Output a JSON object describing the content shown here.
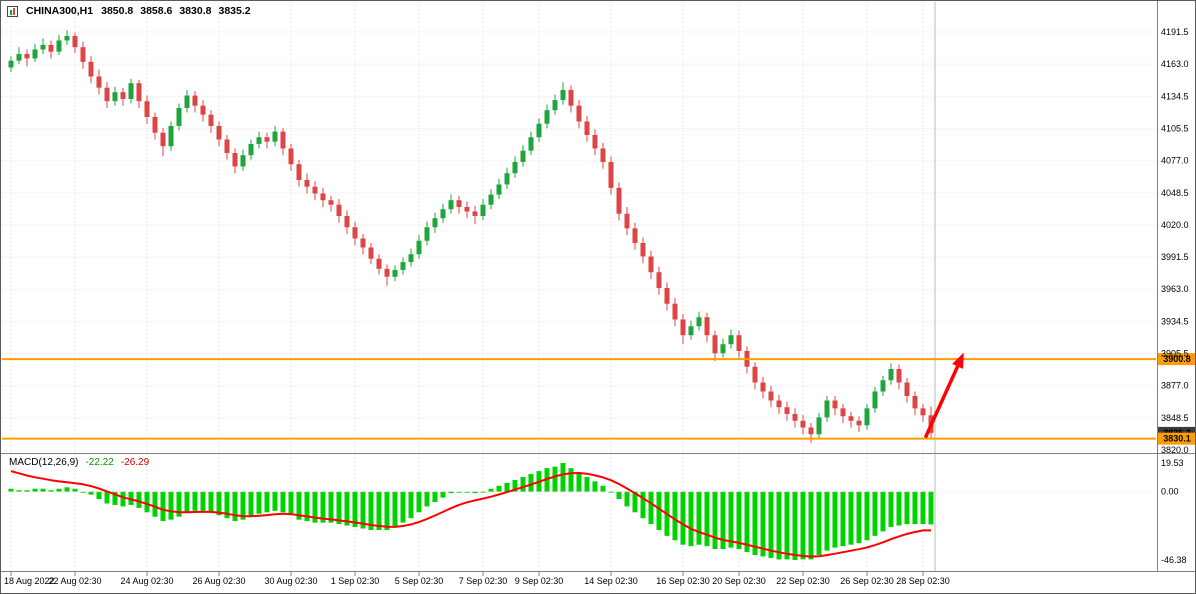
{
  "title": {
    "symbol_period": "CHINA300,H1",
    "open": "3850.8",
    "high": "3858.6",
    "low": "3830.8",
    "close": "3835.2"
  },
  "colors": {
    "bull": "#1fa53c",
    "bear": "#dd4545",
    "macd_hist": "#00d200",
    "macd_signal": "#ff0000",
    "level": "#ff9d00",
    "arrow": "#ff0000",
    "grid": "#d9d9d9",
    "separator": "#808080",
    "last_bar_line": "#bbbbbb",
    "tag_dark_bg": "#3c3c3c",
    "axis_text": "#000000"
  },
  "chart_data": {
    "type": "candlestick",
    "symbol": "CHINA300",
    "timeframe": "H1",
    "ylim": [
      3820.0,
      4191.5
    ],
    "price_ticks": [
      "4191.5",
      "4163.0",
      "4134.5",
      "4105.5",
      "4077.0",
      "4048.5",
      "4020.0",
      "3991.5",
      "3963.0",
      "3934.5",
      "3905.5",
      "3877.0",
      "3848.5",
      "3820.0"
    ],
    "time_ticks": [
      {
        "label": "18 Aug 2022",
        "i": 0
      },
      {
        "label": "22 Aug 02:30",
        "i": 8
      },
      {
        "label": "24 Aug 02:30",
        "i": 17
      },
      {
        "label": "26 Aug 02:30",
        "i": 26
      },
      {
        "label": "30 Aug 02:30",
        "i": 35
      },
      {
        "label": "1 Sep 02:30",
        "i": 43
      },
      {
        "label": "5 Sep 02:30",
        "i": 51
      },
      {
        "label": "7 Sep 02:30",
        "i": 59
      },
      {
        "label": "9 Sep 02:30",
        "i": 66
      },
      {
        "label": "14 Sep 02:30",
        "i": 75
      },
      {
        "label": "16 Sep 02:30",
        "i": 84
      },
      {
        "label": "20 Sep 02:30",
        "i": 91
      },
      {
        "label": "22 Sep 02:30",
        "i": 99
      },
      {
        "label": "26 Sep 02:30",
        "i": 107
      },
      {
        "label": "28 Sep 02:30",
        "i": 114
      }
    ],
    "candles": [
      [
        4160,
        4170,
        4156,
        4166
      ],
      [
        4166,
        4178,
        4163,
        4172
      ],
      [
        4172,
        4176,
        4161,
        4168
      ],
      [
        4168,
        4181,
        4165,
        4176
      ],
      [
        4176,
        4186,
        4172,
        4180
      ],
      [
        4180,
        4184,
        4168,
        4174
      ],
      [
        4174,
        4189,
        4171,
        4184
      ],
      [
        4184,
        4193,
        4180,
        4188
      ],
      [
        4188,
        4191,
        4173,
        4178
      ],
      [
        4178,
        4183,
        4159,
        4165
      ],
      [
        4165,
        4170,
        4146,
        4152
      ],
      [
        4152,
        4158,
        4136,
        4142
      ],
      [
        4142,
        4147,
        4124,
        4130
      ],
      [
        4130,
        4143,
        4126,
        4138
      ],
      [
        4138,
        4142,
        4126,
        4132
      ],
      [
        4132,
        4150,
        4128,
        4146
      ],
      [
        4146,
        4149,
        4124,
        4130
      ],
      [
        4130,
        4135,
        4110,
        4116
      ],
      [
        4116,
        4120,
        4096,
        4102
      ],
      [
        4102,
        4106,
        4081,
        4090
      ],
      [
        4090,
        4112,
        4086,
        4108
      ],
      [
        4108,
        4128,
        4104,
        4124
      ],
      [
        4124,
        4140,
        4120,
        4135
      ],
      [
        4135,
        4139,
        4120,
        4126
      ],
      [
        4126,
        4131,
        4112,
        4118
      ],
      [
        4118,
        4122,
        4102,
        4108
      ],
      [
        4108,
        4112,
        4090,
        4096
      ],
      [
        4096,
        4100,
        4078,
        4084
      ],
      [
        4084,
        4088,
        4066,
        4072
      ],
      [
        4072,
        4087,
        4068,
        4082
      ],
      [
        4082,
        4096,
        4078,
        4092
      ],
      [
        4092,
        4103,
        4088,
        4098
      ],
      [
        4098,
        4102,
        4088,
        4094
      ],
      [
        4094,
        4108,
        4090,
        4103
      ],
      [
        4103,
        4106,
        4082,
        4088
      ],
      [
        4088,
        4092,
        4068,
        4074
      ],
      [
        4074,
        4078,
        4054,
        4060
      ],
      [
        4060,
        4066,
        4048,
        4054
      ],
      [
        4054,
        4059,
        4042,
        4048
      ],
      [
        4048,
        4053,
        4036,
        4042
      ],
      [
        4042,
        4046,
        4032,
        4038
      ],
      [
        4038,
        4043,
        4022,
        4028
      ],
      [
        4028,
        4033,
        4012,
        4018
      ],
      [
        4018,
        4023,
        4002,
        4008
      ],
      [
        4008,
        4012,
        3994,
        4000
      ],
      [
        4000,
        4004,
        3985,
        3990
      ],
      [
        3990,
        3994,
        3976,
        3981
      ],
      [
        3981,
        3985,
        3966,
        3974
      ],
      [
        3974,
        3984,
        3970,
        3980
      ],
      [
        3980,
        3991,
        3976,
        3987
      ],
      [
        3987,
        3999,
        3983,
        3994
      ],
      [
        3994,
        4011,
        3990,
        4006
      ],
      [
        4006,
        4023,
        4002,
        4018
      ],
      [
        4018,
        4031,
        4013,
        4026
      ],
      [
        4026,
        4039,
        4022,
        4034
      ],
      [
        4034,
        4047,
        4030,
        4042
      ],
      [
        4042,
        4046,
        4030,
        4036
      ],
      [
        4036,
        4041,
        4026,
        4032
      ],
      [
        4032,
        4037,
        4021,
        4028
      ],
      [
        4028,
        4043,
        4024,
        4038
      ],
      [
        4038,
        4052,
        4034,
        4047
      ],
      [
        4047,
        4061,
        4043,
        4056
      ],
      [
        4056,
        4071,
        4052,
        4066
      ],
      [
        4066,
        4081,
        4062,
        4076
      ],
      [
        4076,
        4091,
        4072,
        4086
      ],
      [
        4086,
        4103,
        4082,
        4098
      ],
      [
        4098,
        4115,
        4094,
        4110
      ],
      [
        4110,
        4127,
        4106,
        4122
      ],
      [
        4122,
        4136,
        4118,
        4131
      ],
      [
        4131,
        4147,
        4127,
        4140
      ],
      [
        4140,
        4144,
        4120,
        4126
      ],
      [
        4126,
        4131,
        4106,
        4112
      ],
      [
        4112,
        4117,
        4094,
        4100
      ],
      [
        4100,
        4105,
        4082,
        4088
      ],
      [
        4088,
        4093,
        4070,
        4076
      ],
      [
        4076,
        4081,
        4047,
        4053
      ],
      [
        4053,
        4058,
        4024,
        4030
      ],
      [
        4030,
        4036,
        4011,
        4017
      ],
      [
        4017,
        4022,
        3998,
        4004
      ],
      [
        4004,
        4009,
        3986,
        3992
      ],
      [
        3992,
        3997,
        3972,
        3978
      ],
      [
        3978,
        3983,
        3958,
        3964
      ],
      [
        3964,
        3969,
        3944,
        3950
      ],
      [
        3950,
        3955,
        3930,
        3936
      ],
      [
        3936,
        3941,
        3914,
        3922
      ],
      [
        3922,
        3935,
        3918,
        3930
      ],
      [
        3930,
        3943,
        3926,
        3938
      ],
      [
        3938,
        3942,
        3916,
        3922
      ],
      [
        3922,
        3926,
        3899,
        3906
      ],
      [
        3906,
        3919,
        3902,
        3914
      ],
      [
        3914,
        3927,
        3910,
        3922
      ],
      [
        3922,
        3926,
        3902,
        3908
      ],
      [
        3908,
        3912,
        3888,
        3894
      ],
      [
        3894,
        3898,
        3874,
        3880
      ],
      [
        3880,
        3885,
        3866,
        3872
      ],
      [
        3872,
        3877,
        3858,
        3864
      ],
      [
        3864,
        3869,
        3852,
        3858
      ],
      [
        3858,
        3863,
        3846,
        3852
      ],
      [
        3852,
        3857,
        3840,
        3846
      ],
      [
        3846,
        3851,
        3834,
        3840
      ],
      [
        3840,
        3844,
        3826,
        3834
      ],
      [
        3834,
        3853,
        3830,
        3849
      ],
      [
        3849,
        3868,
        3845,
        3864
      ],
      [
        3864,
        3868,
        3851,
        3857
      ],
      [
        3857,
        3861,
        3844,
        3850
      ],
      [
        3850,
        3854,
        3840,
        3846
      ],
      [
        3846,
        3850,
        3836,
        3842
      ],
      [
        3842,
        3861,
        3838,
        3857
      ],
      [
        3857,
        3876,
        3853,
        3872
      ],
      [
        3872,
        3886,
        3868,
        3882
      ],
      [
        3882,
        3897,
        3878,
        3892
      ],
      [
        3892,
        3896,
        3874,
        3880
      ],
      [
        3880,
        3884,
        3862,
        3868
      ],
      [
        3868,
        3872,
        3851,
        3857
      ],
      [
        3857,
        3861,
        3845,
        3850.8
      ],
      [
        3850.8,
        3858.6,
        3830.8,
        3835.2
      ]
    ],
    "levels": [
      {
        "price": 3900.8,
        "label": "3900.8",
        "name": "resistance-level-line"
      },
      {
        "price": 3830.1,
        "label": "3830.1",
        "name": "support-level-line"
      }
    ],
    "price_tag": {
      "price": 3835.2,
      "label": "3835.2"
    },
    "arrow": {
      "x1_i": 114.3,
      "p1": 3831,
      "x2_i": 119.1,
      "p2": 3906.5
    },
    "macd": {
      "label": "MACD(12,26,9)",
      "display_main": "-22.22",
      "display_signal": "-26.29",
      "axis_ticks": [
        "19.53",
        "0.00",
        "-46.38"
      ],
      "axis_values": [
        19.53,
        0,
        -46.38
      ],
      "main": [
        2,
        1,
        1,
        2,
        2,
        1,
        2,
        3,
        2,
        0,
        -2,
        -5,
        -8,
        -9,
        -10,
        -9,
        -11,
        -14,
        -17,
        -20,
        -19,
        -17,
        -14,
        -13,
        -13,
        -14,
        -16,
        -18,
        -20,
        -19,
        -17,
        -15,
        -14,
        -13,
        -14,
        -16,
        -19,
        -20,
        -21,
        -21,
        -21,
        -22,
        -23,
        -24,
        -25,
        -26,
        -26,
        -26,
        -24,
        -21,
        -18,
        -14,
        -10,
        -7,
        -4,
        -1,
        0,
        0,
        -1,
        0,
        2,
        4,
        6,
        8,
        10,
        12,
        14,
        16,
        17,
        19.5,
        16,
        13,
        10,
        7,
        4,
        0,
        -5,
        -10,
        -14,
        -18,
        -22,
        -26,
        -30,
        -33,
        -36,
        -37,
        -36,
        -37,
        -39,
        -39,
        -38,
        -39,
        -41,
        -43,
        -44,
        -45,
        -46,
        -46,
        -46.38,
        -46,
        -46,
        -43,
        -40,
        -38,
        -37,
        -36,
        -35,
        -33,
        -30,
        -27,
        -24,
        -23,
        -22,
        -22,
        -22,
        -22.22
      ],
      "signal": [
        14,
        12.5,
        11,
        9.8,
        8.8,
        7.8,
        7,
        6.4,
        5.8,
        5,
        3.8,
        2.2,
        0.2,
        -1.8,
        -3.8,
        -5.2,
        -6.6,
        -8.3,
        -10.2,
        -12.3,
        -13.3,
        -14,
        -14,
        -13.8,
        -13.6,
        -13.7,
        -14.2,
        -15,
        -16,
        -16.6,
        -16.7,
        -16.3,
        -15.9,
        -15.3,
        -15,
        -15.2,
        -16,
        -16.8,
        -17.6,
        -18.3,
        -18.8,
        -19.5,
        -20.2,
        -20.9,
        -21.7,
        -22.6,
        -23.3,
        -23.8,
        -23.9,
        -23.3,
        -22.2,
        -20.6,
        -18.5,
        -16.2,
        -13.7,
        -11.2,
        -9,
        -7.2,
        -5.9,
        -4.7,
        -3.4,
        -1.9,
        -0.3,
        1.4,
        3.1,
        4.9,
        6.7,
        8.6,
        10.3,
        11.8,
        12.6,
        12.7,
        12.2,
        11.1,
        9.7,
        7.8,
        5.2,
        2.2,
        -1,
        -4.4,
        -7.9,
        -11.5,
        -15.2,
        -18.8,
        -22.2,
        -25.2,
        -27.4,
        -29.3,
        -31.2,
        -32.8,
        -33.8,
        -34.8,
        -36,
        -37.4,
        -38.7,
        -40,
        -41.2,
        -42.2,
        -43,
        -43.6,
        -44.1,
        -43.9,
        -43.1,
        -42.1,
        -41.1,
        -40.1,
        -39.1,
        -37.9,
        -36.3,
        -34.4,
        -32.3,
        -30.4,
        -28.7,
        -27.4,
        -26.3,
        -26.29
      ]
    }
  }
}
